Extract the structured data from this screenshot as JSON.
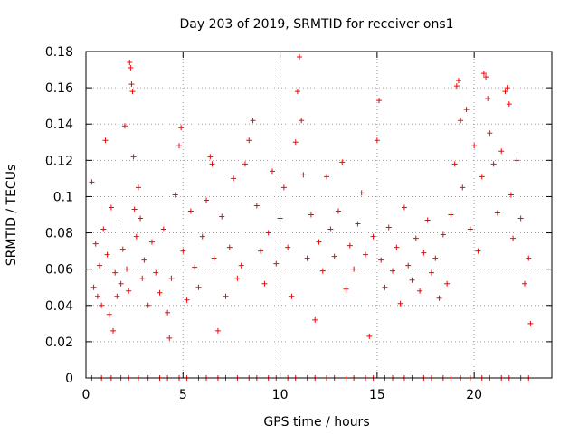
{
  "chart_data": {
    "type": "scatter",
    "title": "Day 203 of 2019, SRMTID for receiver ons1",
    "xlabel": "GPS time / hours",
    "ylabel": "SRMTID / TECUs",
    "xlim": [
      0,
      24
    ],
    "ylim": [
      0,
      0.18
    ],
    "xticks": [
      "0",
      "5",
      "10",
      "15",
      "20"
    ],
    "yticks": [
      "0",
      "0.02",
      "0.04",
      "0.06",
      "0.08",
      "0.1",
      "0.12",
      "0.14",
      "0.16",
      "0.18"
    ],
    "grid": true,
    "marker": "+",
    "series": [
      {
        "name": "SRMTID",
        "color": "#ff0000",
        "points": [
          [
            0.3,
            0.108
          ],
          [
            0.4,
            0.05
          ],
          [
            0.5,
            0.074
          ],
          [
            0.6,
            0.045
          ],
          [
            0.7,
            0.062
          ],
          [
            0.8,
            0.04
          ],
          [
            0.9,
            0.082
          ],
          [
            1.0,
            0.131
          ],
          [
            1.1,
            0.068
          ],
          [
            1.2,
            0.035
          ],
          [
            1.3,
            0.094
          ],
          [
            1.4,
            0.026
          ],
          [
            1.5,
            0.058
          ],
          [
            1.6,
            0.045
          ],
          [
            1.7,
            0.086
          ],
          [
            1.8,
            0.052
          ],
          [
            1.9,
            0.071
          ],
          [
            2.0,
            0.139
          ],
          [
            2.1,
            0.06
          ],
          [
            2.2,
            0.048
          ],
          [
            2.25,
            0.174
          ],
          [
            2.3,
            0.171
          ],
          [
            2.35,
            0.162
          ],
          [
            2.4,
            0.158
          ],
          [
            2.45,
            0.122
          ],
          [
            2.5,
            0.093
          ],
          [
            2.6,
            0.078
          ],
          [
            2.7,
            0.105
          ],
          [
            2.8,
            0.088
          ],
          [
            2.9,
            0.055
          ],
          [
            3.0,
            0.065
          ],
          [
            3.2,
            0.04
          ],
          [
            3.4,
            0.075
          ],
          [
            3.6,
            0.058
          ],
          [
            3.8,
            0.047
          ],
          [
            4.0,
            0.082
          ],
          [
            4.2,
            0.036
          ],
          [
            4.3,
            0.022
          ],
          [
            4.4,
            0.055
          ],
          [
            4.6,
            0.101
          ],
          [
            4.8,
            0.128
          ],
          [
            4.9,
            0.138
          ],
          [
            5.0,
            0.07
          ],
          [
            5.2,
            0.043
          ],
          [
            5.4,
            0.092
          ],
          [
            5.6,
            0.061
          ],
          [
            5.8,
            0.05
          ],
          [
            6.0,
            0.078
          ],
          [
            6.2,
            0.098
          ],
          [
            6.4,
            0.122
          ],
          [
            6.5,
            0.118
          ],
          [
            6.6,
            0.066
          ],
          [
            6.8,
            0.026
          ],
          [
            7.0,
            0.089
          ],
          [
            7.2,
            0.045
          ],
          [
            7.4,
            0.072
          ],
          [
            7.6,
            0.11
          ],
          [
            7.8,
            0.055
          ],
          [
            8.0,
            0.062
          ],
          [
            8.2,
            0.118
          ],
          [
            8.4,
            0.131
          ],
          [
            8.6,
            0.142
          ],
          [
            8.8,
            0.095
          ],
          [
            9.0,
            0.07
          ],
          [
            9.2,
            0.052
          ],
          [
            9.4,
            0.08
          ],
          [
            9.6,
            0.114
          ],
          [
            9.8,
            0.063
          ],
          [
            10.0,
            0.088
          ],
          [
            10.2,
            0.105
          ],
          [
            10.4,
            0.072
          ],
          [
            10.6,
            0.045
          ],
          [
            10.8,
            0.13
          ],
          [
            10.9,
            0.158
          ],
          [
            11.0,
            0.177
          ],
          [
            11.1,
            0.142
          ],
          [
            11.2,
            0.112
          ],
          [
            11.4,
            0.066
          ],
          [
            11.6,
            0.09
          ],
          [
            11.8,
            0.032
          ],
          [
            12.0,
            0.075
          ],
          [
            12.2,
            0.059
          ],
          [
            12.4,
            0.111
          ],
          [
            12.6,
            0.082
          ],
          [
            12.8,
            0.067
          ],
          [
            13.0,
            0.092
          ],
          [
            13.2,
            0.119
          ],
          [
            13.4,
            0.049
          ],
          [
            13.6,
            0.073
          ],
          [
            13.8,
            0.06
          ],
          [
            14.0,
            0.085
          ],
          [
            14.2,
            0.102
          ],
          [
            14.4,
            0.068
          ],
          [
            14.6,
            0.023
          ],
          [
            14.8,
            0.078
          ],
          [
            15.0,
            0.131
          ],
          [
            15.1,
            0.153
          ],
          [
            15.2,
            0.065
          ],
          [
            15.4,
            0.05
          ],
          [
            15.6,
            0.083
          ],
          [
            15.8,
            0.059
          ],
          [
            16.0,
            0.072
          ],
          [
            16.2,
            0.041
          ],
          [
            16.4,
            0.094
          ],
          [
            16.6,
            0.062
          ],
          [
            16.8,
            0.054
          ],
          [
            17.0,
            0.077
          ],
          [
            17.2,
            0.048
          ],
          [
            17.4,
            0.069
          ],
          [
            17.6,
            0.087
          ],
          [
            17.8,
            0.058
          ],
          [
            18.0,
            0.066
          ],
          [
            18.2,
            0.044
          ],
          [
            18.4,
            0.079
          ],
          [
            18.6,
            0.052
          ],
          [
            18.8,
            0.09
          ],
          [
            19.0,
            0.118
          ],
          [
            19.1,
            0.161
          ],
          [
            19.2,
            0.164
          ],
          [
            19.3,
            0.142
          ],
          [
            19.4,
            0.105
          ],
          [
            19.6,
            0.148
          ],
          [
            19.8,
            0.082
          ],
          [
            20.0,
            0.128
          ],
          [
            20.2,
            0.07
          ],
          [
            20.4,
            0.111
          ],
          [
            20.5,
            0.168
          ],
          [
            20.6,
            0.166
          ],
          [
            20.7,
            0.154
          ],
          [
            20.8,
            0.135
          ],
          [
            21.0,
            0.118
          ],
          [
            21.2,
            0.091
          ],
          [
            21.4,
            0.125
          ],
          [
            21.6,
            0.158
          ],
          [
            21.7,
            0.16
          ],
          [
            21.8,
            0.151
          ],
          [
            21.9,
            0.101
          ],
          [
            22.0,
            0.077
          ],
          [
            22.2,
            0.12
          ],
          [
            22.4,
            0.088
          ],
          [
            22.6,
            0.052
          ],
          [
            22.8,
            0.066
          ],
          [
            22.9,
            0.03
          ]
        ]
      }
    ]
  }
}
